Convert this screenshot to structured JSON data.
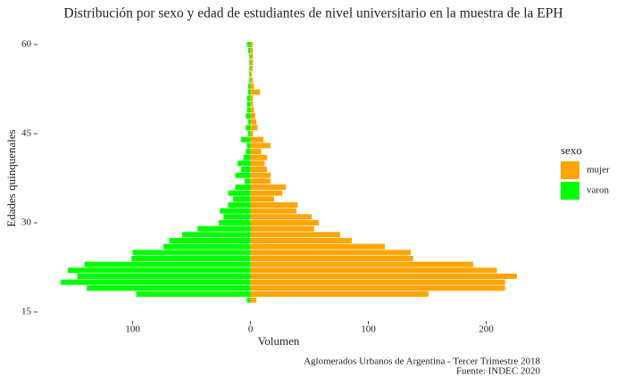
{
  "chart_data": {
    "type": "bar",
    "orientation": "horizontal",
    "title": "Distribución por sexo y edad de estudiantes de nivel universitario en la muestra de la EPH",
    "x_label": "Volumen",
    "y_label": "Edades quinquenales",
    "legend_title": "sexo",
    "caption": [
      "Aglomerados Urbanos de Argentina - Tercer Trimestre 2018",
      "Fuente: INDEC 2020"
    ],
    "y": [
      17,
      18,
      19,
      20,
      21,
      22,
      23,
      24,
      25,
      26,
      27,
      28,
      29,
      30,
      31,
      32,
      33,
      34,
      35,
      36,
      37,
      38,
      39,
      40,
      41,
      42,
      43,
      44,
      45,
      46,
      47,
      48,
      49,
      50,
      51,
      52,
      53,
      54,
      55,
      56,
      57,
      58,
      59,
      60
    ],
    "series": [
      {
        "name": "mujer",
        "color": "#FFA500",
        "values": [
          5,
          151,
          216,
          216,
          226,
          209,
          189,
          138,
          136,
          114,
          86,
          76,
          54,
          58,
          52,
          39,
          40,
          20,
          27,
          30,
          17,
          17,
          14,
          12,
          14,
          9,
          17,
          11,
          2,
          6,
          5,
          4,
          3,
          2,
          2,
          8,
          3,
          2,
          1,
          2,
          2,
          2,
          2,
          2
        ]
      },
      {
        "name": "varon",
        "color": "#00FF00",
        "values": [
          -3,
          -97,
          -139,
          -161,
          -147,
          -155,
          -141,
          -101,
          -100,
          -74,
          -69,
          -58,
          -45,
          -27,
          -23,
          -26,
          -19,
          -15,
          -19,
          -13,
          -5,
          -13,
          -8,
          -11,
          -6,
          -4,
          -3,
          -8,
          -2,
          -4,
          -2,
          -4,
          -3,
          -3,
          -3,
          -2,
          -2,
          -1,
          -1,
          -1,
          -1,
          -1,
          -2,
          -3
        ]
      }
    ],
    "xlim": [
      -180,
      242
    ],
    "xticks": [
      {
        "value": -100,
        "label": "100"
      },
      0,
      100,
      200
    ],
    "ylim": [
      13.5,
      61.5
    ],
    "yticks": [
      15,
      30,
      45,
      60
    ],
    "legend_position": "right"
  }
}
